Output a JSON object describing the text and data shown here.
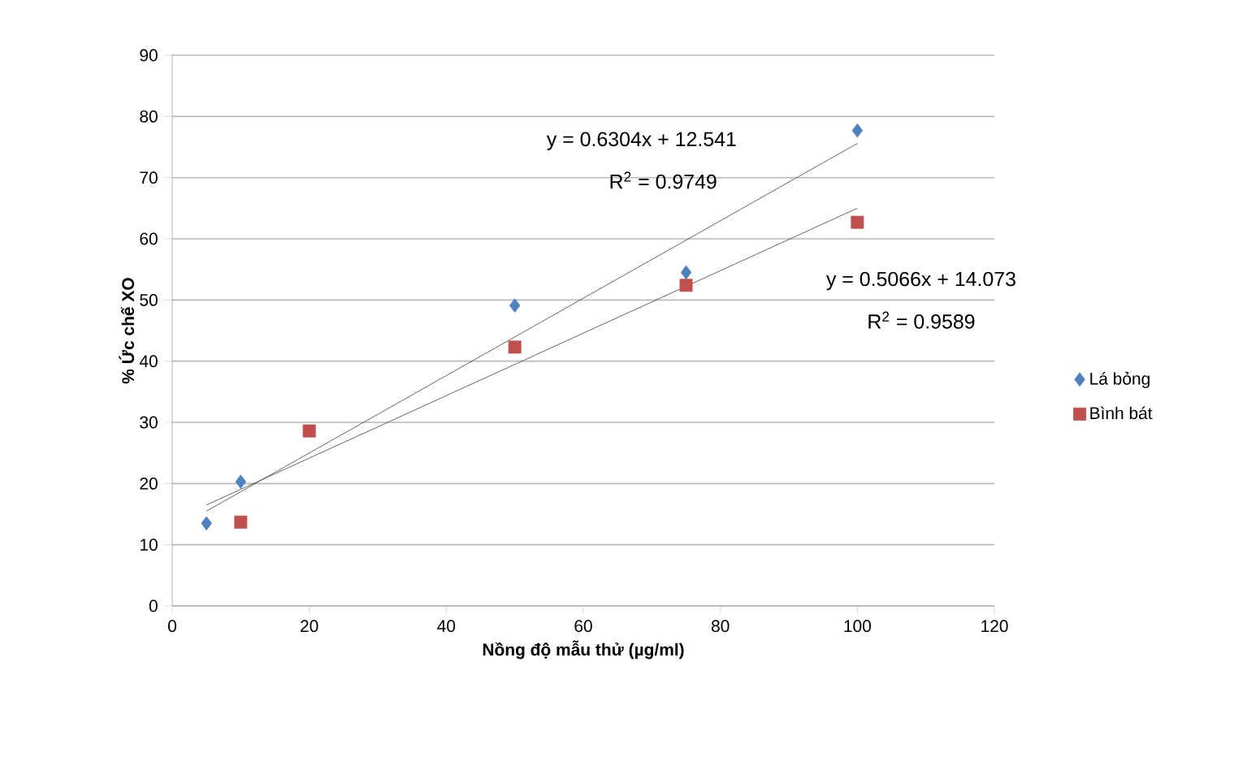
{
  "chart_data": {
    "type": "scatter",
    "xlabel": "Nồng độ mẫu thử (µg/ml)",
    "ylabel": "% Ức chế XO",
    "xlim": [
      0,
      120
    ],
    "xticks": [
      0,
      20,
      40,
      60,
      80,
      100,
      120
    ],
    "ylim": [
      0,
      90
    ],
    "yticks": [
      0,
      10,
      20,
      30,
      40,
      50,
      60,
      70,
      80,
      90
    ],
    "grid": "y",
    "legend": "right",
    "series": [
      {
        "name": "Lá bỏng",
        "color": "#4f81bd",
        "marker": "diamond",
        "x": [
          5,
          10,
          50,
          75,
          100
        ],
        "values": [
          13.5,
          20.3,
          49.1,
          54.5,
          77.7
        ]
      },
      {
        "name": "Bình bát",
        "color": "#c0504d",
        "marker": "square",
        "x": [
          10,
          20,
          50,
          75,
          100
        ],
        "values": [
          13.7,
          28.6,
          42.3,
          52.4,
          62.7
        ]
      },
      {
        "type": "line",
        "color": "#404040",
        "marker": "none",
        "x": [
          5,
          100
        ],
        "values": [
          15.5,
          75.6
        ]
      },
      {
        "type": "line",
        "color": "#404040",
        "marker": "none",
        "x": [
          5,
          100
        ],
        "values": [
          16.5,
          65.0
        ]
      }
    ],
    "annotations": [
      "y = 0.6304x + 12.541",
      "R$^{2}$ = 0.9749",
      "y = 0.5066x + 14.073",
      "R$^{2}$ = 0.9589"
    ]
  }
}
